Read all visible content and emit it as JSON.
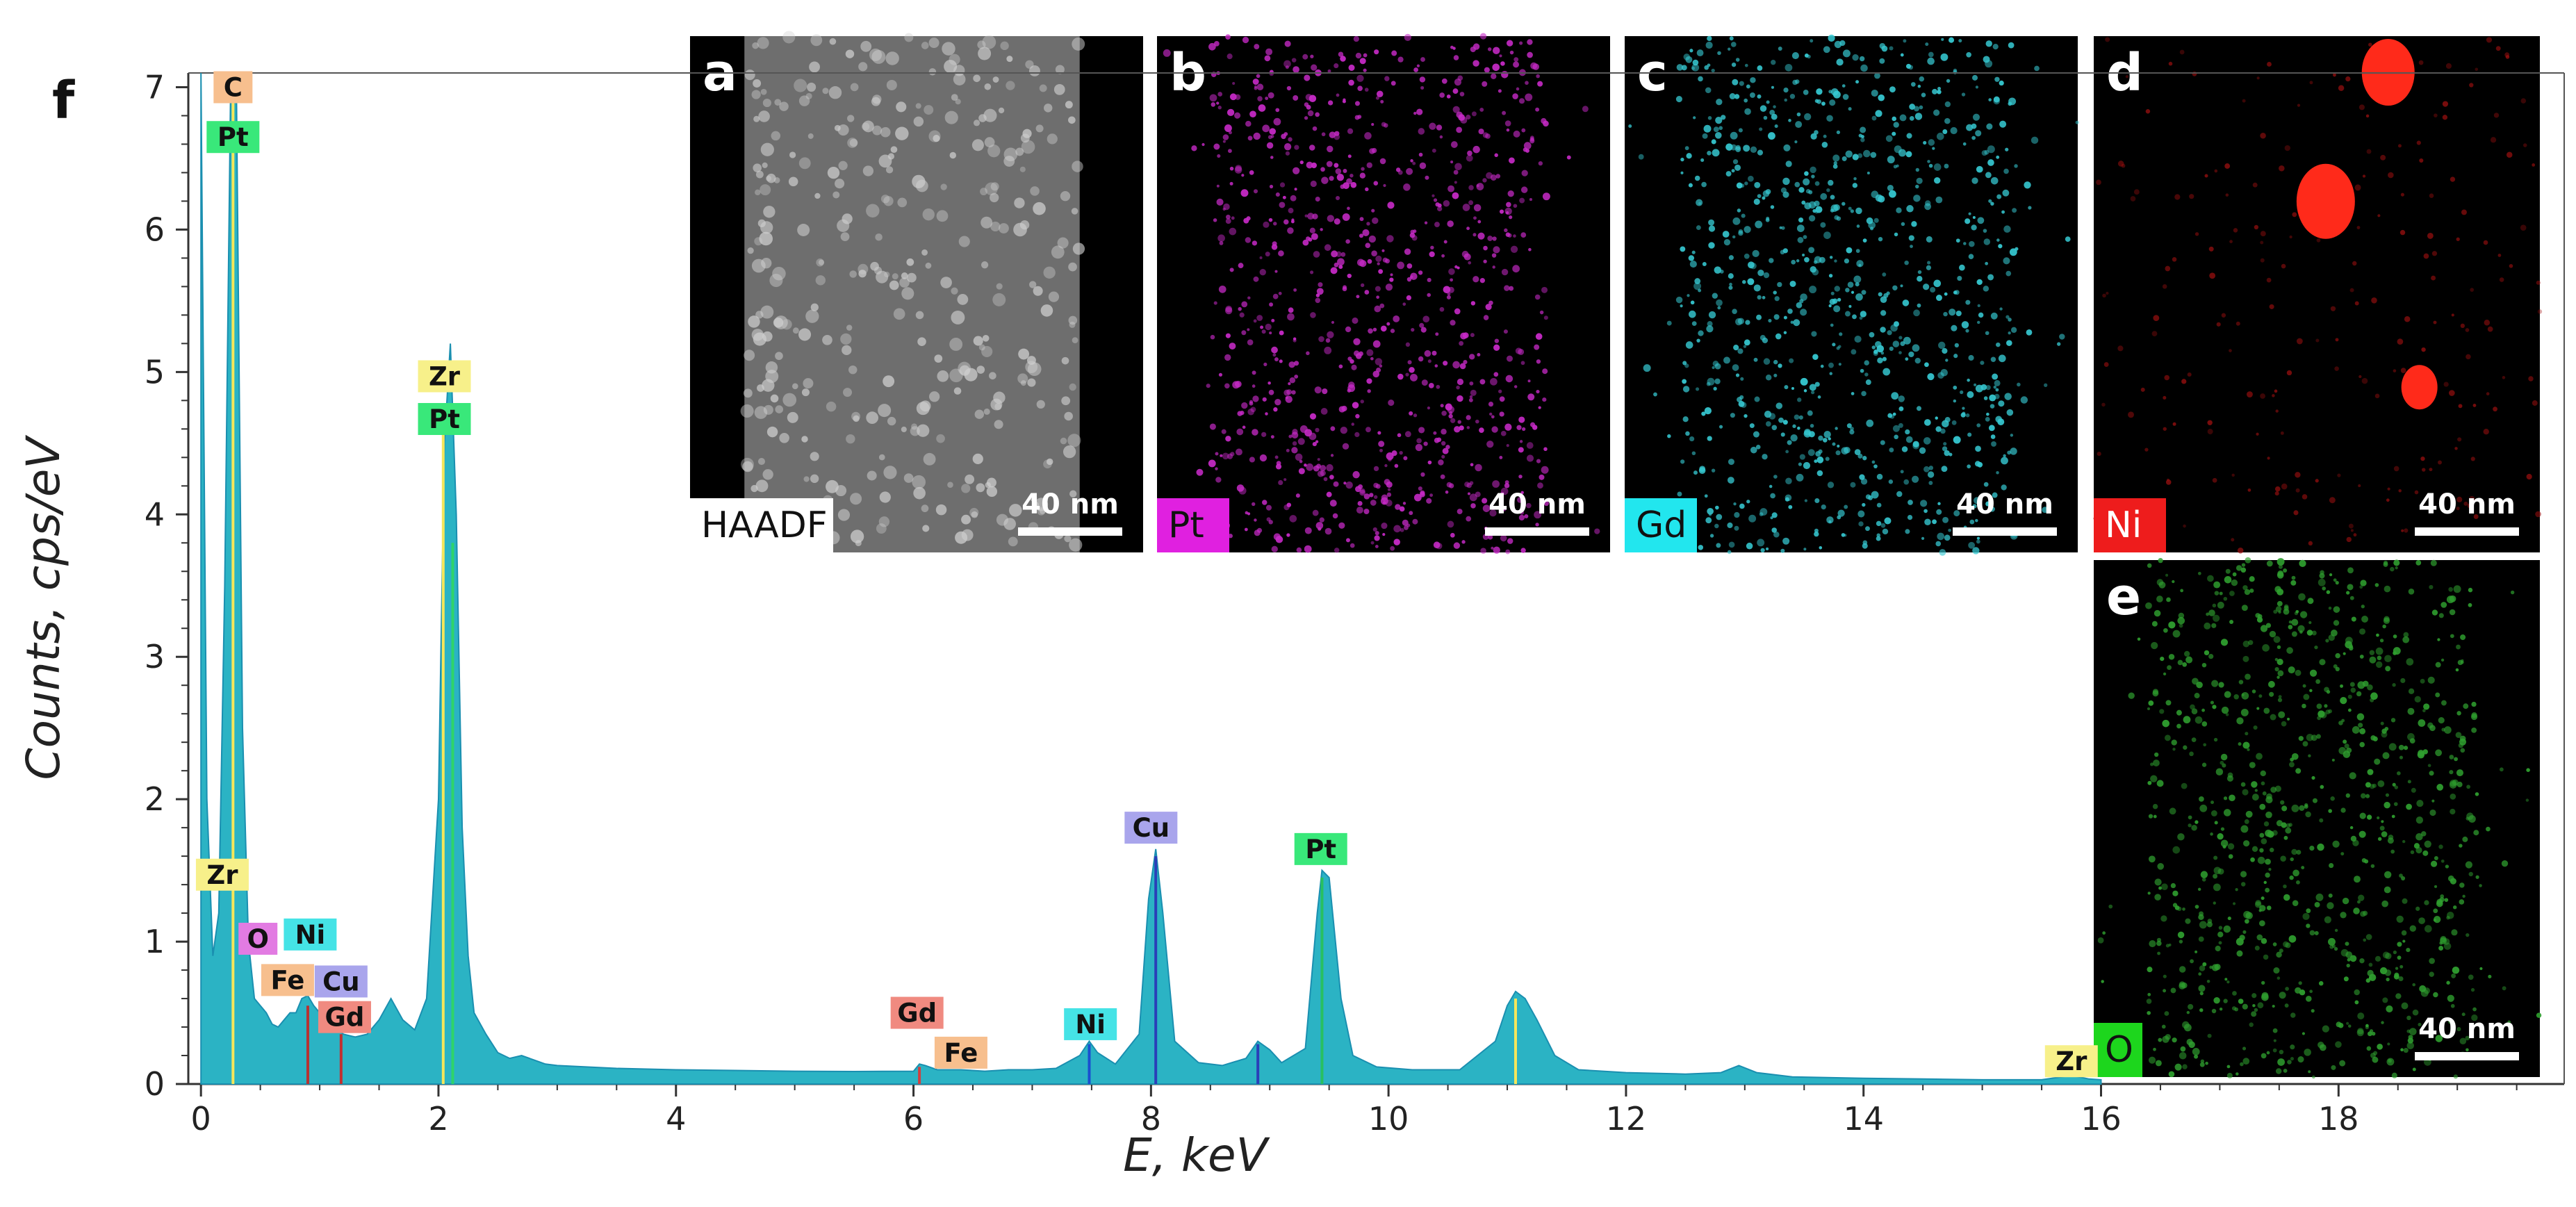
{
  "chart_data": {
    "type": "line",
    "panel_letter": "f",
    "xlabel": "E, keV",
    "ylabel": "Counts, cps/eV",
    "xlim": [
      -0.2,
      19.9
    ],
    "ylim": [
      0,
      7.1
    ],
    "x_ticks": [
      "0",
      "2",
      "4",
      "6",
      "8",
      "10",
      "12",
      "14",
      "16",
      "18"
    ],
    "y_ticks": [
      "0",
      "1",
      "2",
      "3",
      "4",
      "5",
      "6",
      "7"
    ],
    "series_color": "#2bb3c4",
    "spectrum": {
      "x": [
        0.0,
        0.05,
        0.1,
        0.15,
        0.2,
        0.25,
        0.3,
        0.35,
        0.4,
        0.45,
        0.5,
        0.55,
        0.6,
        0.65,
        0.7,
        0.75,
        0.8,
        0.85,
        0.9,
        0.95,
        1.0,
        1.05,
        1.1,
        1.15,
        1.2,
        1.3,
        1.4,
        1.5,
        1.6,
        1.7,
        1.8,
        1.9,
        2.0,
        2.05,
        2.1,
        2.15,
        2.2,
        2.25,
        2.3,
        2.4,
        2.5,
        2.6,
        2.7,
        2.8,
        2.9,
        3.0,
        3.5,
        4.0,
        4.5,
        5.0,
        5.5,
        6.0,
        6.05,
        6.1,
        6.2,
        6.4,
        6.6,
        6.8,
        7.0,
        7.2,
        7.4,
        7.48,
        7.55,
        7.7,
        7.9,
        7.98,
        8.04,
        8.1,
        8.2,
        8.4,
        8.6,
        8.8,
        8.9,
        9.0,
        9.1,
        9.3,
        9.4,
        9.44,
        9.5,
        9.6,
        9.7,
        9.9,
        10.2,
        10.6,
        10.9,
        11.0,
        11.07,
        11.15,
        11.25,
        11.4,
        11.6,
        12.0,
        12.5,
        12.8,
        12.95,
        13.1,
        13.4,
        14.0,
        14.5,
        15.0,
        15.5,
        15.75,
        15.9,
        16.0
      ],
      "y": [
        7.1,
        2.0,
        0.9,
        1.2,
        3.5,
        7.0,
        6.9,
        2.5,
        1.0,
        0.6,
        0.55,
        0.5,
        0.42,
        0.4,
        0.45,
        0.5,
        0.5,
        0.6,
        0.62,
        0.55,
        0.5,
        0.45,
        0.42,
        0.38,
        0.35,
        0.33,
        0.35,
        0.45,
        0.6,
        0.45,
        0.38,
        0.6,
        2.0,
        4.5,
        5.2,
        4.0,
        1.8,
        0.9,
        0.5,
        0.35,
        0.22,
        0.18,
        0.2,
        0.17,
        0.14,
        0.13,
        0.11,
        0.1,
        0.095,
        0.09,
        0.088,
        0.09,
        0.14,
        0.13,
        0.1,
        0.1,
        0.09,
        0.1,
        0.1,
        0.11,
        0.2,
        0.3,
        0.22,
        0.14,
        0.35,
        1.3,
        1.65,
        1.2,
        0.3,
        0.15,
        0.13,
        0.18,
        0.3,
        0.24,
        0.15,
        0.25,
        1.2,
        1.5,
        1.45,
        0.6,
        0.2,
        0.12,
        0.1,
        0.1,
        0.3,
        0.55,
        0.65,
        0.6,
        0.45,
        0.2,
        0.1,
        0.08,
        0.07,
        0.08,
        0.13,
        0.08,
        0.05,
        0.04,
        0.035,
        0.03,
        0.03,
        0.06,
        0.035,
        0.03
      ]
    },
    "peak_labels": [
      {
        "text": "C",
        "x": 0.27,
        "y": 7.0,
        "color": "#f7bf8e"
      },
      {
        "text": "Pt",
        "x": 0.27,
        "y": 6.65,
        "color": "#39e87a"
      },
      {
        "text": "Zr",
        "x": 2.05,
        "y": 4.97,
        "color": "#f7f08a"
      },
      {
        "text": "Pt",
        "x": 2.05,
        "y": 4.67,
        "color": "#39e87a"
      },
      {
        "text": "Zr",
        "x": 0.18,
        "y": 1.47,
        "color": "#f7f08a"
      },
      {
        "text": "O",
        "x": 0.48,
        "y": 1.02,
        "color": "#e27be2"
      },
      {
        "text": "Ni",
        "x": 0.92,
        "y": 1.05,
        "color": "#45e3e6"
      },
      {
        "text": "Fe",
        "x": 0.73,
        "y": 0.73,
        "color": "#f7bf8e"
      },
      {
        "text": "Cu",
        "x": 1.18,
        "y": 0.72,
        "color": "#a9a5ec"
      },
      {
        "text": "Gd",
        "x": 1.21,
        "y": 0.47,
        "color": "#f08a80"
      },
      {
        "text": "Gd",
        "x": 6.03,
        "y": 0.5,
        "color": "#f08a80"
      },
      {
        "text": "Fe",
        "x": 6.4,
        "y": 0.22,
        "color": "#f7bf8e"
      },
      {
        "text": "Ni",
        "x": 7.49,
        "y": 0.42,
        "color": "#45e3e6"
      },
      {
        "text": "Cu",
        "x": 8.0,
        "y": 1.8,
        "color": "#a9a5ec"
      },
      {
        "text": "Pt",
        "x": 9.43,
        "y": 1.65,
        "color": "#39e87a"
      },
      {
        "text": "Zr",
        "x": 15.75,
        "y": 0.16,
        "color": "#f7f08a"
      }
    ]
  },
  "maps": [
    {
      "letter": "a",
      "label": "HAADF",
      "scale_label": "40 nm",
      "letter_color": "#ffffff",
      "label_bg": "#ffffff",
      "label_fg": "#111111",
      "dot_color": "#cfcfcf",
      "kind": "haadf"
    },
    {
      "letter": "b",
      "label": "Pt",
      "scale_label": "40 nm",
      "letter_color": "#ffffff",
      "label_bg": "#e020e0",
      "label_fg": "#111111",
      "dot_color": "#c82ac8",
      "kind": "dots"
    },
    {
      "letter": "c",
      "label": "Gd",
      "scale_label": "40 nm",
      "letter_color": "#ffffff",
      "label_bg": "#22e6ee",
      "label_fg": "#111111",
      "dot_color": "#36c9d2",
      "kind": "dots"
    },
    {
      "letter": "d",
      "label": "Ni",
      "scale_label": "40 nm",
      "letter_color": "#ffffff",
      "label_bg": "#ee1c1c",
      "label_fg": "#ffffff",
      "dot_color": "#a01010",
      "kind": "blobs"
    },
    {
      "letter": "e",
      "label": "O",
      "scale_label": "40 nm",
      "letter_color": "#ffffff",
      "label_bg": "#1dd61d",
      "label_fg": "#111111",
      "dot_color": "#2f9f2f",
      "kind": "dots"
    }
  ]
}
